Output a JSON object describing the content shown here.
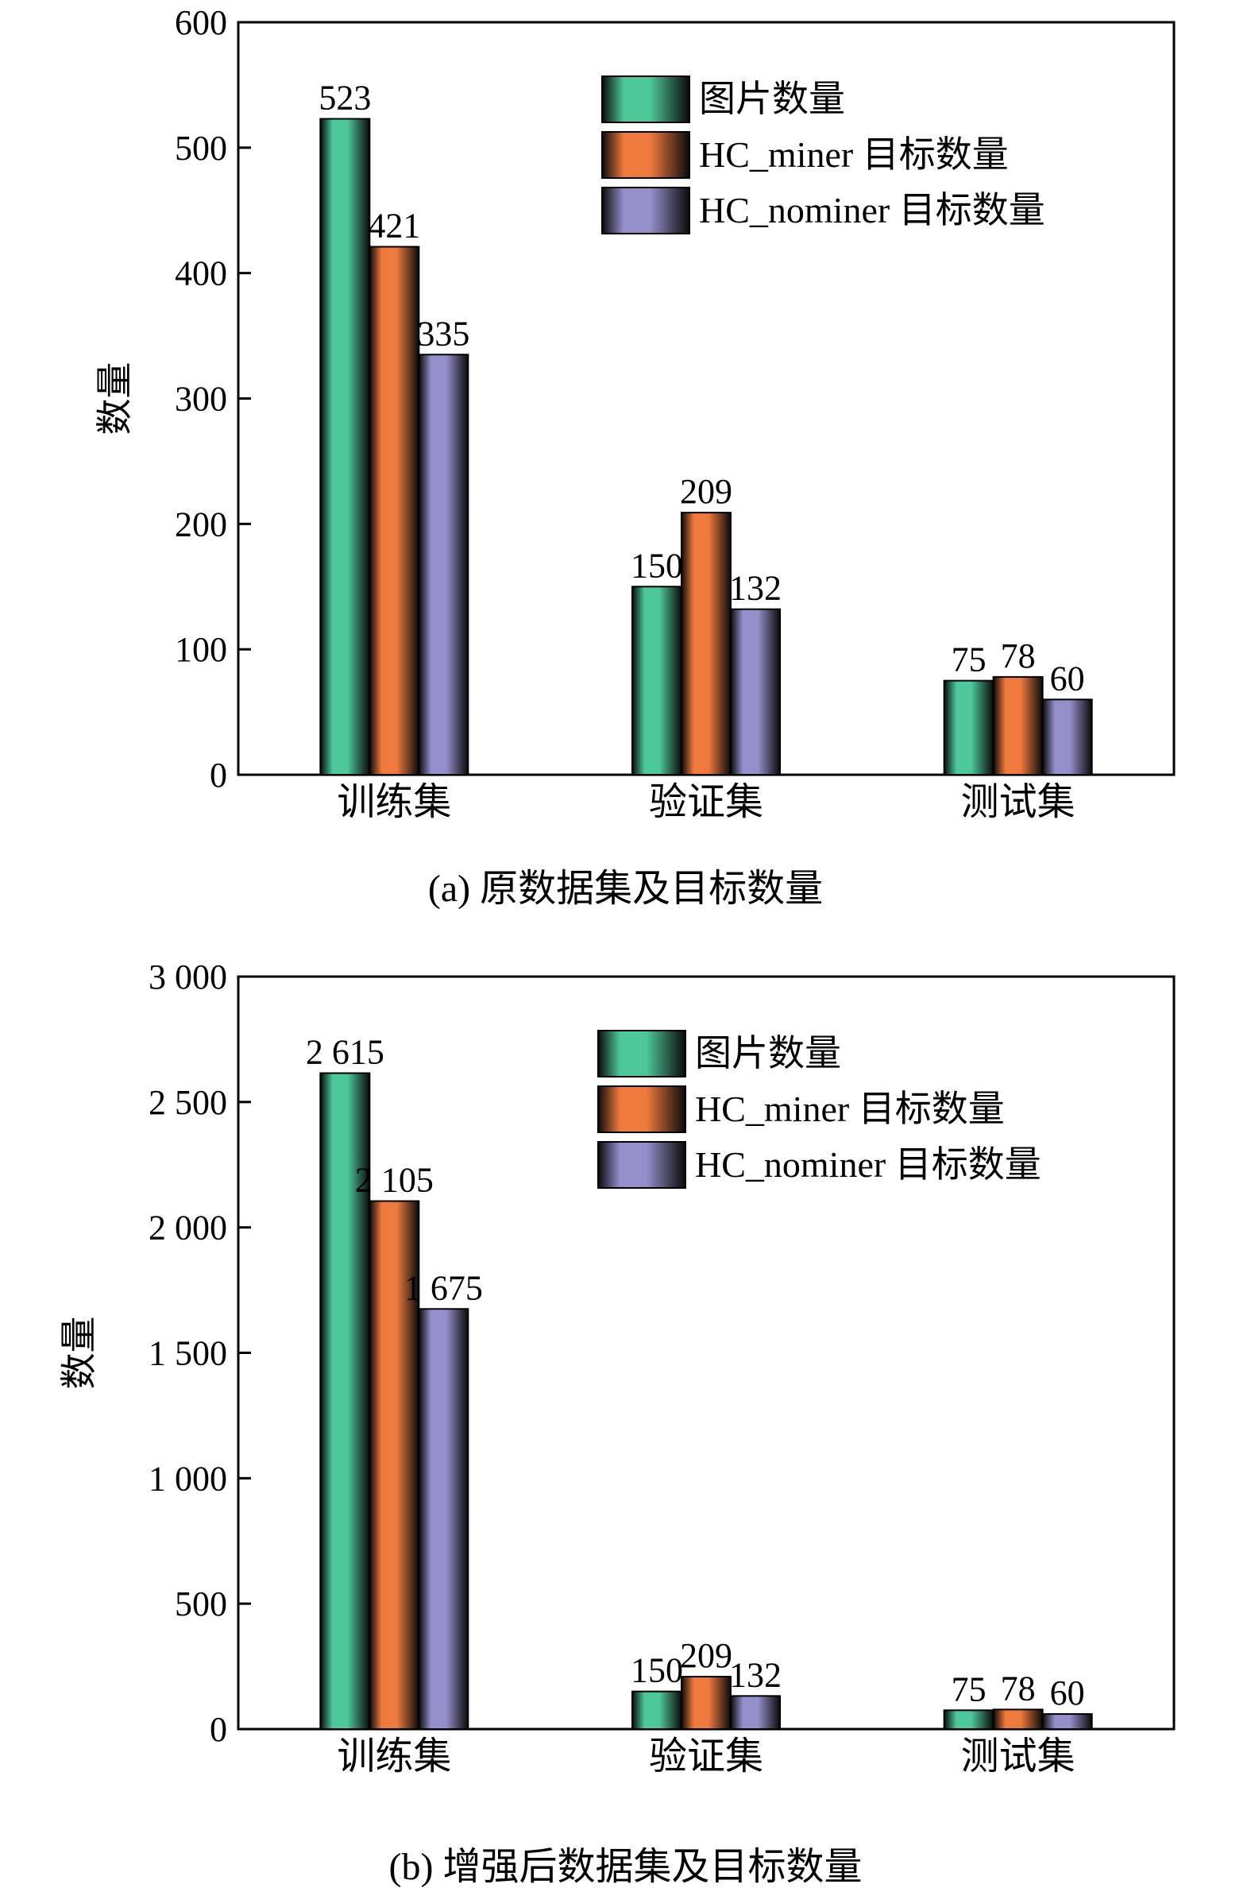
{
  "chart_data": [
    {
      "type": "bar",
      "title": "(a) 原数据集及目标数量",
      "ylabel": "数量",
      "xlabel": "",
      "ylim": [
        0,
        600
      ],
      "yticks": [
        "0",
        "100",
        "200",
        "300",
        "400",
        "500",
        "600"
      ],
      "categories": [
        "训练集",
        "验证集",
        "测试集"
      ],
      "series": [
        {
          "name": "图片数量",
          "values": [
            523,
            150,
            75
          ],
          "labels": [
            "523",
            "150",
            "75"
          ],
          "color": "#4dc89a"
        },
        {
          "name": "HC_miner 目标数量",
          "values": [
            421,
            209,
            78
          ],
          "labels": [
            "421",
            "209",
            "78"
          ],
          "color": "#f07a3e"
        },
        {
          "name": "HC_nominer 目标数量",
          "values": [
            335,
            132,
            60
          ],
          "labels": [
            "335",
            "132",
            "60"
          ],
          "color": "#9590cc"
        }
      ],
      "legend_position": "top-right",
      "grid": false
    },
    {
      "type": "bar",
      "title": "(b) 增强后数据集及目标数量",
      "ylabel": "数量",
      "xlabel": "",
      "ylim": [
        0,
        3000
      ],
      "yticks": [
        "0",
        "500",
        "1 000",
        "1 500",
        "2 000",
        "2 500",
        "3 000"
      ],
      "categories": [
        "训练集",
        "验证集",
        "测试集"
      ],
      "series": [
        {
          "name": "图片数量",
          "values": [
            2615,
            150,
            75
          ],
          "labels": [
            "2 615",
            "150",
            "75"
          ],
          "color": "#4dc89a"
        },
        {
          "name": "HC_miner 目标数量",
          "values": [
            2105,
            209,
            78
          ],
          "labels": [
            "2 105",
            "209",
            "78"
          ],
          "color": "#f07a3e"
        },
        {
          "name": "HC_nominer 目标数量",
          "values": [
            1675,
            132,
            60
          ],
          "labels": [
            "1 675",
            "132",
            "60"
          ],
          "color": "#9590cc"
        }
      ],
      "legend_position": "top-right",
      "grid": false
    }
  ]
}
